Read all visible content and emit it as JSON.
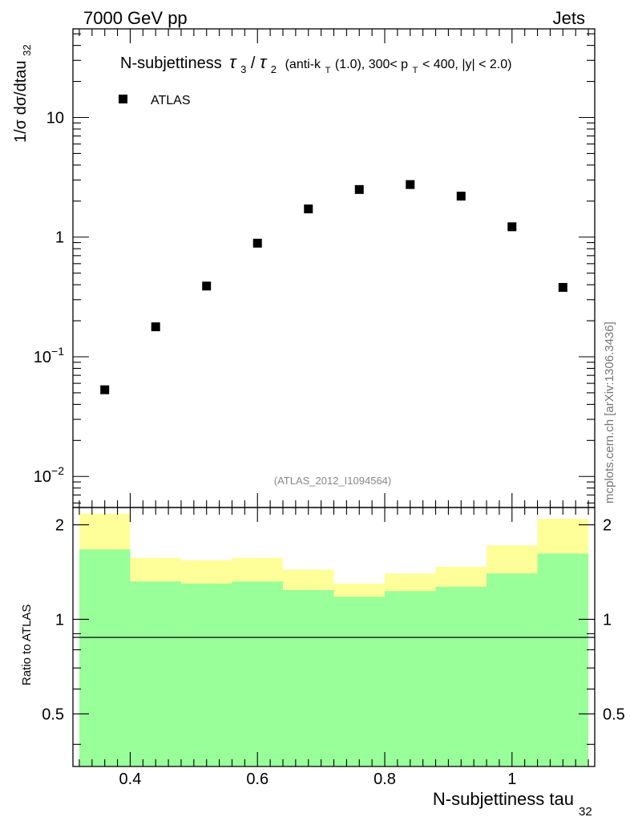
{
  "header": {
    "left": "7000 GeV pp",
    "right": "Jets"
  },
  "watermark": "mcplots.cern.ch [arXiv:1306.3436]",
  "analysis_id": "(ATLAS_2012_I1094564)",
  "chart_data": {
    "type": "scatter",
    "title": "N-subjettiness τ3/τ2 (anti-kT(1.0), 300< pT < 400, |y| < 2.0)",
    "title_parts": {
      "main": "N-subjettiness",
      "tau3": "τ",
      "sub3": "3",
      "slash": "/",
      "tau2": "τ",
      "sub2": "2",
      "paren_a": "(anti-k",
      "sub_t1": "T",
      "paren_b": "(1.0), 300< p",
      "sub_t2": "T",
      "paren_c": " < 400, |y| < 2.0)"
    },
    "xlabel": "N-subjettiness tau",
    "xlabel_sub": "32",
    "ylabel": "1/σ dσ/dtau",
    "ylabel_sub": "32",
    "xlim": [
      0.31,
      1.13
    ],
    "ylim": [
      0.0055,
      55
    ],
    "yscale": "log",
    "legend": {
      "label": "ATLAS",
      "position": "top-left"
    },
    "x_ticks": [
      "0.4",
      "0.6",
      "0.8",
      "1"
    ],
    "y_ticks": [
      {
        "base": "10",
        "exp": "−2",
        "value": 0.01
      },
      {
        "base": "10",
        "exp": "−1",
        "value": 0.1
      },
      {
        "base": "1",
        "exp": "",
        "value": 1
      },
      {
        "base": "10",
        "exp": "",
        "value": 10
      }
    ],
    "series": [
      {
        "name": "ATLAS",
        "x": [
          0.36,
          0.44,
          0.52,
          0.6,
          0.68,
          0.76,
          0.84,
          0.92,
          1.0,
          1.08
        ],
        "y": [
          0.053,
          0.178,
          0.39,
          0.89,
          1.72,
          2.5,
          2.75,
          2.2,
          1.22,
          0.38
        ]
      }
    ],
    "ratio": {
      "ylabel": "Ratio to ATLAS",
      "ylim": [
        0.34,
        2.27
      ],
      "y_ticks": [
        "0.5",
        "1",
        "2"
      ],
      "bins": [
        {
          "lo": 0.32,
          "hi": 0.4,
          "y1_lo": 0.34,
          "y1_hi": 1.67,
          "y2_lo": 0.34,
          "y2_hi": 2.17
        },
        {
          "lo": 0.4,
          "hi": 0.48,
          "y1_lo": 0.34,
          "y1_hi": 1.32,
          "y2_lo": 0.6,
          "y2_hi": 1.57
        },
        {
          "lo": 0.48,
          "hi": 0.56,
          "y1_lo": 0.34,
          "y1_hi": 1.3,
          "y2_lo": 0.58,
          "y2_hi": 1.54
        },
        {
          "lo": 0.56,
          "hi": 0.64,
          "y1_lo": 0.34,
          "y1_hi": 1.32,
          "y2_lo": 0.56,
          "y2_hi": 1.57
        },
        {
          "lo": 0.64,
          "hi": 0.72,
          "y1_lo": 0.34,
          "y1_hi": 1.24,
          "y2_lo": 0.72,
          "y2_hi": 1.44
        },
        {
          "lo": 0.72,
          "hi": 0.8,
          "y1_lo": 0.34,
          "y1_hi": 1.18,
          "y2_lo": 0.79,
          "y2_hi": 1.3
        },
        {
          "lo": 0.8,
          "hi": 0.88,
          "y1_lo": 0.34,
          "y1_hi": 1.23,
          "y2_lo": 0.71,
          "y2_hi": 1.4
        },
        {
          "lo": 0.88,
          "hi": 0.96,
          "y1_lo": 0.34,
          "y1_hi": 1.27,
          "y2_lo": 0.52,
          "y2_hi": 1.47
        },
        {
          "lo": 0.96,
          "hi": 1.04,
          "y1_lo": 0.34,
          "y1_hi": 1.4,
          "y2_lo": 0.4,
          "y2_hi": 1.72
        },
        {
          "lo": 1.04,
          "hi": 1.12,
          "y1_lo": 0.34,
          "y1_hi": 1.62,
          "y2_lo": 0.34,
          "y2_hi": 2.09
        }
      ],
      "bins_note": "y1 = inner green band (lo,hi), y2 = outer yellow band (lo,hi)",
      "colors": {
        "inner": "#99ff99",
        "outer": "#ffff99",
        "reference": "#000000"
      }
    }
  },
  "colors": {
    "marker": "#000000",
    "axis": "#000000",
    "analysis_id": "#888888",
    "watermark": "#777777"
  }
}
